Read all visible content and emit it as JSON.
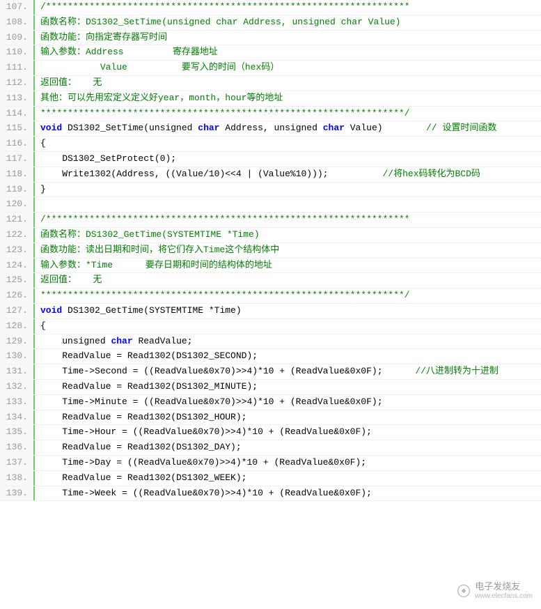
{
  "colors": {
    "comment": "#008000",
    "keyword": "#0000ff",
    "default": "#000000",
    "gutter_bg": "#f8f8f8",
    "gutter_text": "#999999",
    "gutter_border": "#6dc76d",
    "line_divider": "#e8e8e8",
    "background": "#ffffff"
  },
  "typography": {
    "font_family": "Consolas, Monaco, 'Courier New', monospace",
    "font_size": 13,
    "line_height": 1.6
  },
  "watermark": {
    "brand_cn": "电子发烧友",
    "url": "www.elecfans.com"
  },
  "lines": [
    {
      "num": 107,
      "segments": [
        {
          "cls": "c-comment",
          "text": "/*******************************************************************"
        }
      ]
    },
    {
      "num": 108,
      "segments": [
        {
          "cls": "c-comment",
          "text": "函数名称：DS1302_SetTime(unsigned char Address, unsigned char Value)"
        }
      ]
    },
    {
      "num": 109,
      "segments": [
        {
          "cls": "c-comment",
          "text": "函数功能：向指定寄存器写时间"
        }
      ]
    },
    {
      "num": 110,
      "segments": [
        {
          "cls": "c-comment",
          "text": "输入参数：Address         寄存器地址"
        }
      ]
    },
    {
      "num": 111,
      "segments": [
        {
          "cls": "c-comment",
          "text": "           Value          要写入的时间（hex码）"
        }
      ]
    },
    {
      "num": 112,
      "segments": [
        {
          "cls": "c-comment",
          "text": "返回值：   无"
        }
      ]
    },
    {
      "num": 113,
      "segments": [
        {
          "cls": "c-comment",
          "text": "其他：可以先用宏定义定义好year，month，hour等的地址"
        }
      ]
    },
    {
      "num": 114,
      "segments": [
        {
          "cls": "c-comment",
          "text": "*******************************************************************/"
        }
      ]
    },
    {
      "num": 115,
      "segments": [
        {
          "cls": "c-keyword",
          "text": "void"
        },
        {
          "cls": "c-default",
          "text": " DS1302_SetTime(unsigned "
        },
        {
          "cls": "c-keyword",
          "text": "char"
        },
        {
          "cls": "c-default",
          "text": " Address, unsigned "
        },
        {
          "cls": "c-keyword",
          "text": "char"
        },
        {
          "cls": "c-default",
          "text": " Value)        "
        },
        {
          "cls": "c-comment",
          "text": "// 设置时间函数"
        }
      ]
    },
    {
      "num": 116,
      "segments": [
        {
          "cls": "c-default",
          "text": "{"
        }
      ]
    },
    {
      "num": 117,
      "segments": [
        {
          "cls": "c-default",
          "text": "    DS1302_SetProtect(0);"
        }
      ]
    },
    {
      "num": 118,
      "segments": [
        {
          "cls": "c-default",
          "text": "    Write1302(Address, ((Value/10)<<4 | (Value%10)));          "
        },
        {
          "cls": "c-comment",
          "text": "//将hex码转化为BCD码"
        }
      ]
    },
    {
      "num": 119,
      "segments": [
        {
          "cls": "c-default",
          "text": "}"
        }
      ]
    },
    {
      "num": 120,
      "segments": []
    },
    {
      "num": 121,
      "segments": [
        {
          "cls": "c-comment",
          "text": "/*******************************************************************"
        }
      ]
    },
    {
      "num": 122,
      "segments": [
        {
          "cls": "c-comment",
          "text": "函数名称：DS1302_GetTime(SYSTEMTIME *Time)"
        }
      ]
    },
    {
      "num": 123,
      "segments": [
        {
          "cls": "c-comment",
          "text": "函数功能：读出日期和时间，将它们存入Time这个结构体中"
        }
      ]
    },
    {
      "num": 124,
      "segments": [
        {
          "cls": "c-comment",
          "text": "输入参数：*Time      要存日期和时间的结构体的地址"
        }
      ]
    },
    {
      "num": 125,
      "segments": [
        {
          "cls": "c-comment",
          "text": "返回值：   无"
        }
      ]
    },
    {
      "num": 126,
      "segments": [
        {
          "cls": "c-comment",
          "text": "*******************************************************************/"
        }
      ]
    },
    {
      "num": 127,
      "segments": [
        {
          "cls": "c-keyword",
          "text": "void"
        },
        {
          "cls": "c-default",
          "text": " DS1302_GetTime(SYSTEMTIME *Time)"
        }
      ]
    },
    {
      "num": 128,
      "segments": [
        {
          "cls": "c-default",
          "text": "{"
        }
      ]
    },
    {
      "num": 129,
      "segments": [
        {
          "cls": "c-default",
          "text": "    unsigned "
        },
        {
          "cls": "c-keyword",
          "text": "char"
        },
        {
          "cls": "c-default",
          "text": " ReadValue;"
        }
      ]
    },
    {
      "num": 130,
      "segments": [
        {
          "cls": "c-default",
          "text": "    ReadValue = Read1302(DS1302_SECOND);"
        }
      ]
    },
    {
      "num": 131,
      "segments": [
        {
          "cls": "c-default",
          "text": "    Time->Second = ((ReadValue&0x70)>>4)*10 + (ReadValue&0x0F);      "
        },
        {
          "cls": "c-comment",
          "text": "//八进制转为十进制"
        }
      ]
    },
    {
      "num": 132,
      "segments": [
        {
          "cls": "c-default",
          "text": "    ReadValue = Read1302(DS1302_MINUTE);"
        }
      ]
    },
    {
      "num": 133,
      "segments": [
        {
          "cls": "c-default",
          "text": "    Time->Minute = ((ReadValue&0x70)>>4)*10 + (ReadValue&0x0F);"
        }
      ]
    },
    {
      "num": 134,
      "segments": [
        {
          "cls": "c-default",
          "text": "    ReadValue = Read1302(DS1302_HOUR);"
        }
      ]
    },
    {
      "num": 135,
      "segments": [
        {
          "cls": "c-default",
          "text": "    Time->Hour = ((ReadValue&0x70)>>4)*10 + (ReadValue&0x0F);"
        }
      ]
    },
    {
      "num": 136,
      "segments": [
        {
          "cls": "c-default",
          "text": "    ReadValue = Read1302(DS1302_DAY);"
        }
      ]
    },
    {
      "num": 137,
      "segments": [
        {
          "cls": "c-default",
          "text": "    Time->Day = ((ReadValue&0x70)>>4)*10 + (ReadValue&0x0F);"
        }
      ]
    },
    {
      "num": 138,
      "segments": [
        {
          "cls": "c-default",
          "text": "    ReadValue = Read1302(DS1302_WEEK);"
        }
      ]
    },
    {
      "num": 139,
      "segments": [
        {
          "cls": "c-default",
          "text": "    Time->Week = ((ReadValue&0x70)>>4)*10 + (ReadValue&0x0F);"
        }
      ]
    }
  ]
}
